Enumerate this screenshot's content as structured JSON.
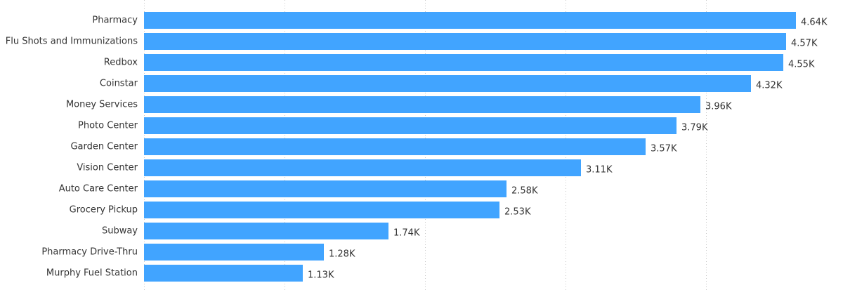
{
  "chart_data": {
    "type": "bar",
    "orientation": "horizontal",
    "categories": [
      "Pharmacy",
      "Flu Shots and Immunizations",
      "Redbox",
      "Coinstar",
      "Money Services",
      "Photo Center",
      "Garden Center",
      "Vision Center",
      "Auto Care Center",
      "Grocery Pickup",
      "Subway",
      "Pharmacy Drive-Thru",
      "Murphy Fuel Station"
    ],
    "values": [
      4640,
      4570,
      4550,
      4320,
      3960,
      3790,
      3570,
      3110,
      2580,
      2530,
      1740,
      1280,
      1130
    ],
    "value_labels": [
      "4.64K",
      "4.57K",
      "4.55K",
      "4.32K",
      "3.96K",
      "3.79K",
      "3.57K",
      "3.11K",
      "2.58K",
      "2.53K",
      "1.74K",
      "1.28K",
      "1.13K"
    ],
    "color": "#41a4ff",
    "xlim": [
      0,
      5000
    ],
    "xticks": [
      0,
      1000,
      2000,
      3000,
      4000
    ],
    "grid": true
  }
}
